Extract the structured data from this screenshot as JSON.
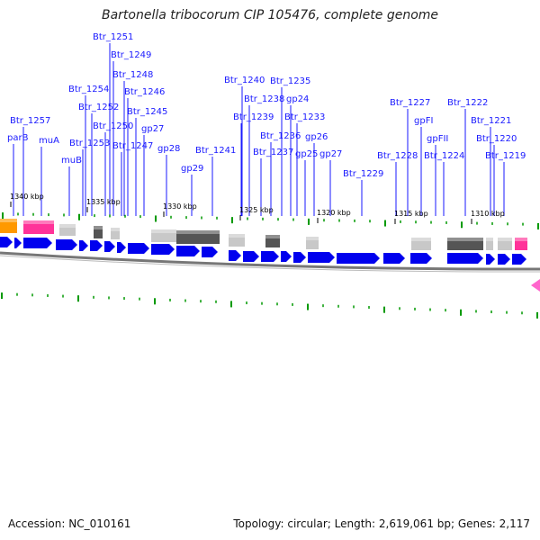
{
  "title": "Bartonella tribocorum CIP 105476, complete genome",
  "footer": {
    "accession": "Accession: NC_010161",
    "stats": "Topology: circular; Length: 2,619,061 bp; Genes: 2,117"
  },
  "colors": {
    "cds": "#0000ee",
    "label": "#1a1aff",
    "tick_major": "#009900",
    "backbone": "#777777",
    "orange_feature": "#ff9900",
    "magenta_feature": "#ff3399",
    "gray_light": "#c8c8c8",
    "gray_dark": "#555555"
  },
  "scale_labels": [
    "1340 kbp",
    "1335 kbp",
    "1330 kbp",
    "1325 kbp",
    "1320 kbp",
    "1315 kbp",
    "1310 kbp"
  ],
  "gene_labels": [
    "Btr_1251",
    "Btr_1249",
    "Btr_1248",
    "Btr_1254",
    "Btr_1246",
    "Btr_1252",
    "Btr_1245",
    "Btr_1257",
    "Btr_1250",
    "parB",
    "muA",
    "Btr_1253",
    "gp27",
    "Btr_1247",
    "muB",
    "gp28",
    "gp29",
    "Btr_1241",
    "Btr_1240",
    "Btr_1235",
    "Btr_1238",
    "gp24",
    "Btr_1239",
    "Btr_1233",
    "Btr_1236",
    "gp26",
    "Btr_1237",
    "gp25",
    "gp27",
    "Btr_1229",
    "Btr_1227",
    "Btr_1222",
    "gpFI",
    "Btr_1221",
    "gpFII",
    "Btr_1220",
    "Btr_1228",
    "Btr_1224",
    "Btr_1219"
  ]
}
